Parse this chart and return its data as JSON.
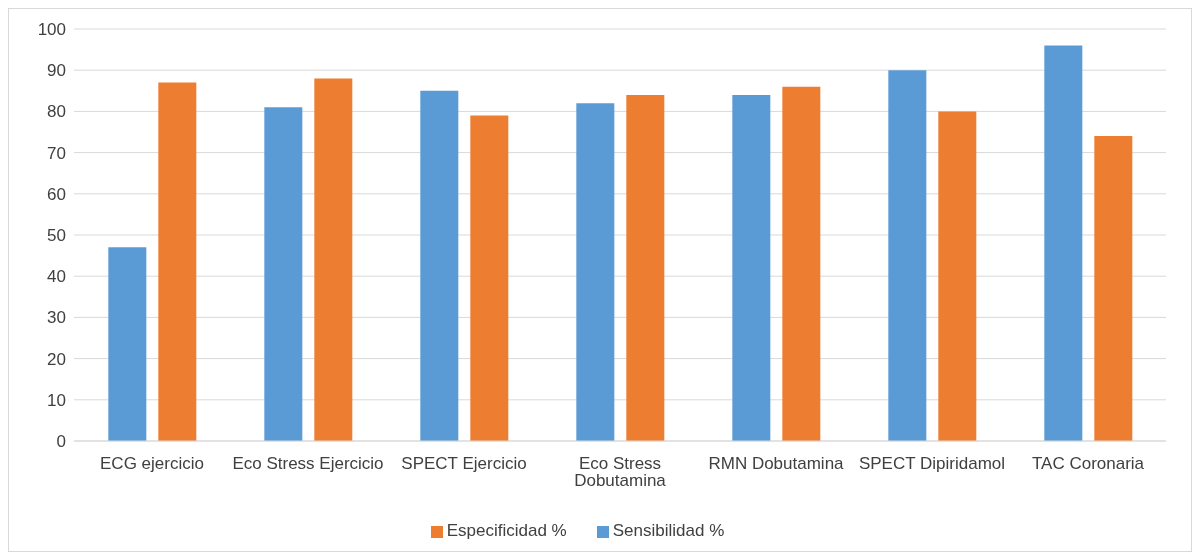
{
  "chart_data": {
    "type": "bar",
    "categories": [
      "ECG ejercicio",
      "Eco Stress Ejercicio",
      "SPECT Ejercicio",
      "Eco Stress Dobutamina",
      "RMN Dobutamina",
      "SPECT Dipiridamol",
      "TAC Coronaria"
    ],
    "series": [
      {
        "name": "Sensibilidad %",
        "color": "#5b9bd5",
        "values": [
          47,
          81,
          85,
          82,
          84,
          90,
          96
        ]
      },
      {
        "name": "Especificidad %",
        "color": "#ed7d31",
        "values": [
          87,
          88,
          79,
          84,
          86,
          80,
          74
        ]
      }
    ],
    "ylim": [
      0,
      100
    ],
    "yticks": [
      0,
      10,
      20,
      30,
      40,
      50,
      60,
      70,
      80,
      90,
      100
    ],
    "grid": "y",
    "legend": "bottom"
  }
}
